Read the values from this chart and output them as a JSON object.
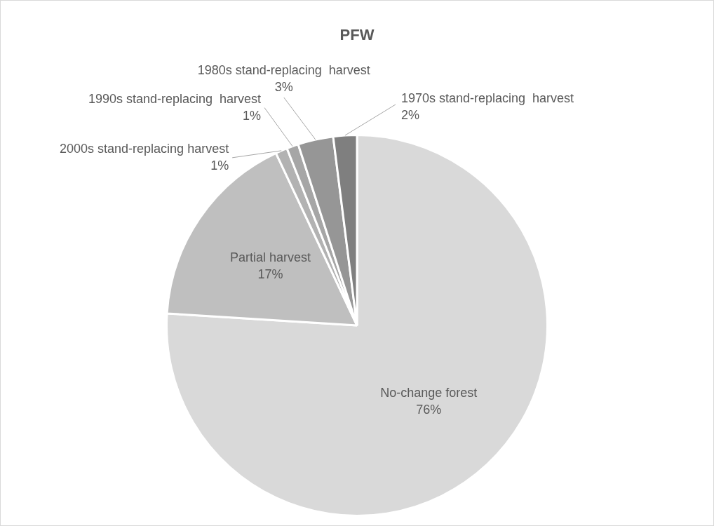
{
  "chart_data": {
    "type": "pie",
    "title": "PFW",
    "categories": [
      "No-change forest",
      "Partial harvest",
      "2000s stand-replacing harvest",
      "1990s stand-replacing  harvest",
      "1980s stand-replacing  harvest",
      "1970s stand-replacing  harvest"
    ],
    "values": [
      76,
      17,
      1,
      1,
      3,
      2
    ],
    "value_labels": [
      "76%",
      "17%",
      "1%",
      "1%",
      "3%",
      "2%"
    ],
    "colors": [
      "#d9d9d9",
      "#bfbfbf",
      "#b2b2b2",
      "#a6a6a6",
      "#969696",
      "#7f7f7f"
    ],
    "legend": false
  }
}
